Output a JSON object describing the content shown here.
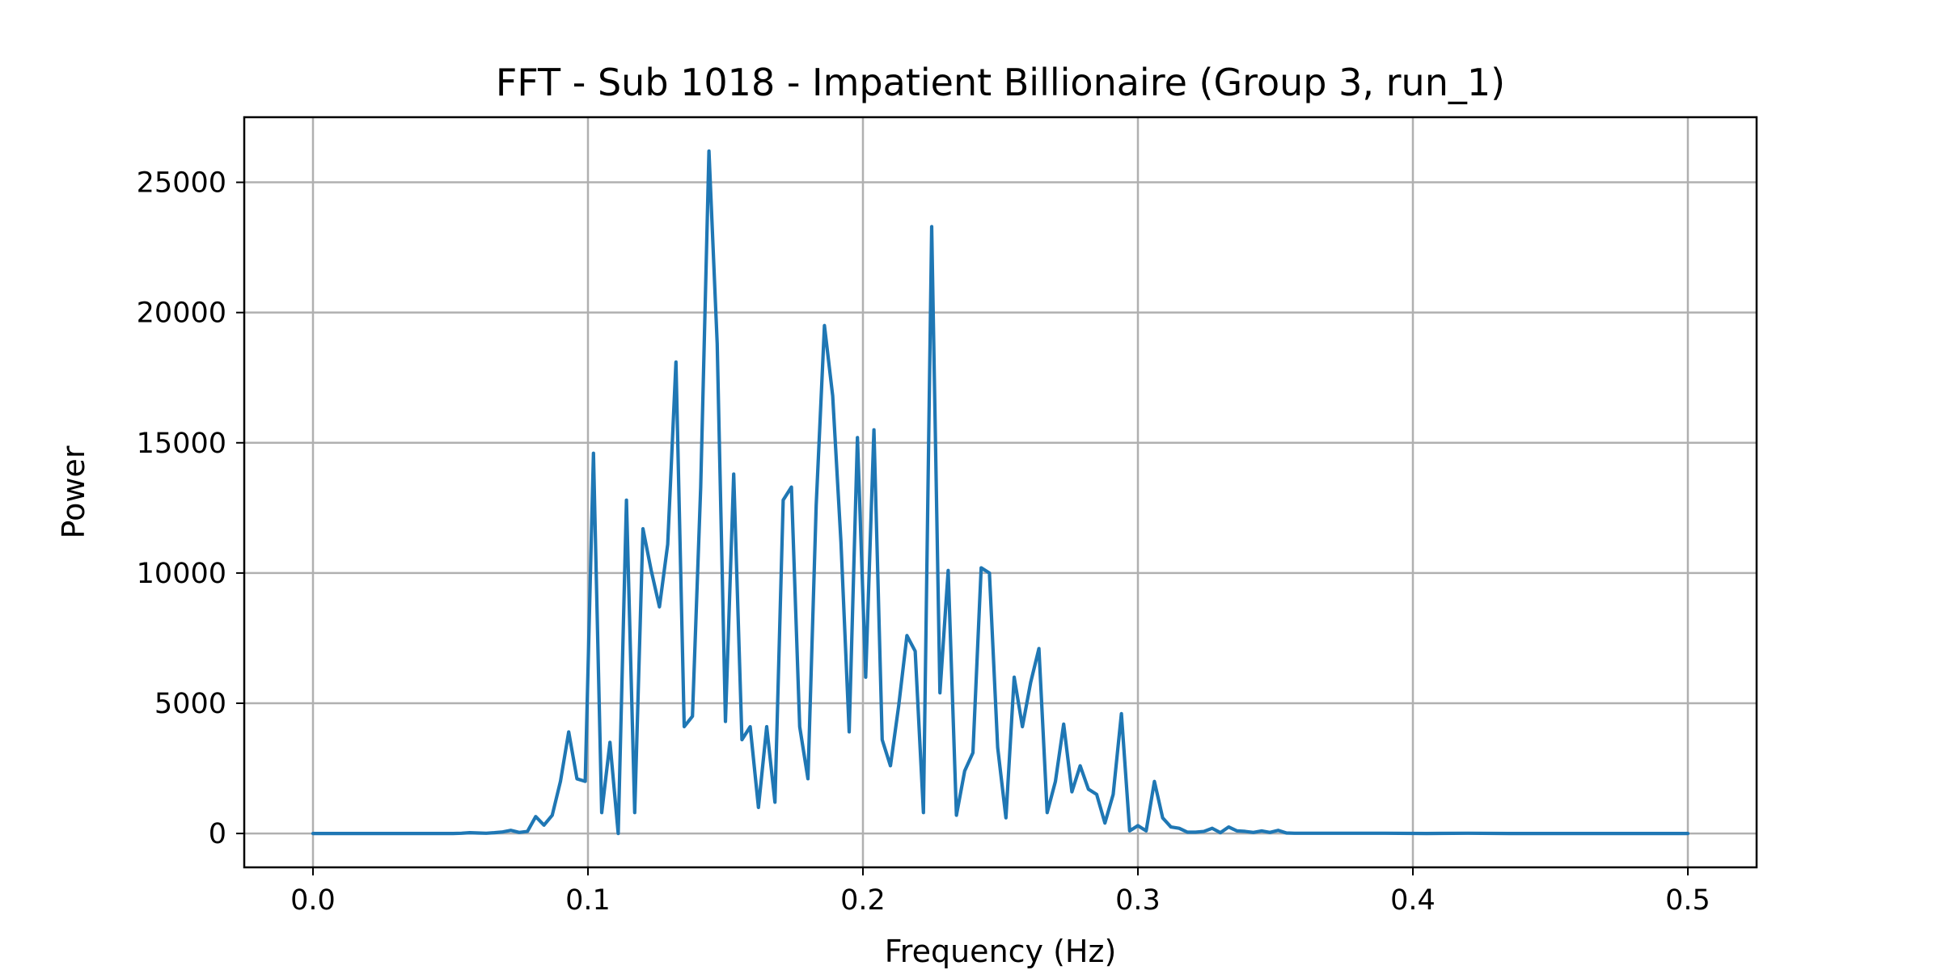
{
  "chart_data": {
    "type": "line",
    "title": "FFT - Sub 1018 - Impatient Billionaire (Group 3, run_1)",
    "xlabel": "Frequency (Hz)",
    "ylabel": "Power",
    "xlim": [
      -0.025,
      0.525
    ],
    "ylim": [
      -1300,
      27500
    ],
    "xticks": [
      0.0,
      0.1,
      0.2,
      0.3,
      0.4,
      0.5
    ],
    "xtick_labels": [
      "0.0",
      "0.1",
      "0.2",
      "0.3",
      "0.4",
      "0.5"
    ],
    "yticks": [
      0,
      5000,
      10000,
      15000,
      20000,
      25000
    ],
    "ytick_labels": [
      "0",
      "5000",
      "10000",
      "15000",
      "20000",
      "25000"
    ],
    "grid": true,
    "legend": false,
    "series_color": "#1f77b4",
    "series": [
      {
        "x": [
          0.0,
          0.003,
          0.006,
          0.009,
          0.012,
          0.015,
          0.018,
          0.021,
          0.024,
          0.027,
          0.03,
          0.033,
          0.036,
          0.039,
          0.042,
          0.045,
          0.048,
          0.051,
          0.054,
          0.057,
          0.06,
          0.063,
          0.066,
          0.069,
          0.072,
          0.075,
          0.078,
          0.081,
          0.084,
          0.087,
          0.09,
          0.093,
          0.096,
          0.099,
          0.102,
          0.105,
          0.108,
          0.111,
          0.114,
          0.117,
          0.12,
          0.123,
          0.126,
          0.129,
          0.132,
          0.135,
          0.138,
          0.141,
          0.144,
          0.147,
          0.15,
          0.153,
          0.156,
          0.159,
          0.162,
          0.165,
          0.168,
          0.171,
          0.174,
          0.177,
          0.18,
          0.183,
          0.186,
          0.189,
          0.192,
          0.195,
          0.198,
          0.201,
          0.204,
          0.207,
          0.21,
          0.213,
          0.216,
          0.219,
          0.222,
          0.225,
          0.228,
          0.231,
          0.234,
          0.237,
          0.24,
          0.243,
          0.246,
          0.249,
          0.252,
          0.255,
          0.258,
          0.261,
          0.264,
          0.267,
          0.27,
          0.273,
          0.276,
          0.279,
          0.282,
          0.285,
          0.288,
          0.291,
          0.294,
          0.297,
          0.3,
          0.303,
          0.306,
          0.309,
          0.312,
          0.315,
          0.318,
          0.321,
          0.324,
          0.327,
          0.33,
          0.333,
          0.336,
          0.339,
          0.342,
          0.345,
          0.348,
          0.351,
          0.354,
          0.357,
          0.36,
          0.375,
          0.39,
          0.405,
          0.42,
          0.435,
          0.45,
          0.465,
          0.48,
          0.5
        ],
        "values": [
          0,
          0,
          0,
          0,
          0,
          0,
          0,
          0,
          0,
          0,
          0,
          0,
          0,
          0,
          0,
          0,
          0,
          0,
          10,
          30,
          20,
          10,
          30,
          60,
          120,
          40,
          80,
          650,
          320,
          700,
          2000,
          3900,
          2100,
          2000,
          14600,
          800,
          3500,
          0,
          12800,
          800,
          11700,
          10100,
          8700,
          11100,
          18100,
          4100,
          4500,
          13300,
          26200,
          18800,
          4300,
          13800,
          3600,
          4100,
          1000,
          4100,
          1200,
          12800,
          13300,
          4100,
          2100,
          12600,
          19500,
          16800,
          11200,
          3900,
          15200,
          6000,
          15500,
          3600,
          2600,
          4900,
          7600,
          7000,
          800,
          23300,
          5400,
          10100,
          700,
          2400,
          3100,
          10200,
          10000,
          3300,
          600,
          6000,
          4100,
          5800,
          7100,
          800,
          2000,
          4200,
          1600,
          2600,
          1700,
          1500,
          400,
          1500,
          4600,
          100,
          300,
          100,
          2000,
          600,
          250,
          200,
          50,
          50,
          80,
          200,
          30,
          250,
          100,
          80,
          40,
          100,
          40,
          120,
          20,
          10,
          10,
          10,
          10,
          0,
          10,
          0,
          0,
          0,
          0,
          0
        ]
      }
    ]
  }
}
